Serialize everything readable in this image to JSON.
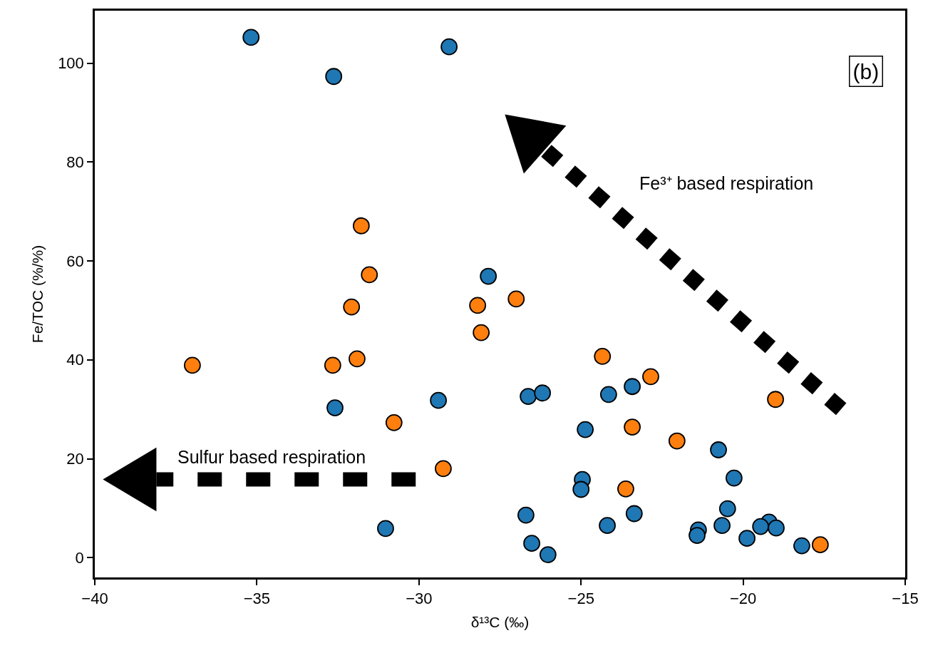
{
  "chart_data": {
    "type": "scatter",
    "xlabel": "δ¹³C (‰)",
    "ylabel": "Fe/TOC (%/%)",
    "xlim": [
      -40,
      -15
    ],
    "xticks": [
      -40,
      -35,
      -30,
      -25,
      -20,
      -15
    ],
    "ylim": [
      -4,
      110.6
    ],
    "yticks": [
      0,
      20,
      40,
      60,
      80,
      100
    ],
    "marker": "circle",
    "series": [
      {
        "color": "#1f77b4",
        "x": [
          -35.18,
          -32.63,
          -29.07,
          -27.86,
          -32.59,
          -29.4,
          -31.03,
          -26.63,
          -26.19,
          -24.15,
          -23.42,
          -24.87,
          -24.96,
          -25.0,
          -20.76,
          -20.28,
          -26.7,
          -24.19,
          -23.36,
          -26.52,
          -26.02,
          -20.48,
          -20.65,
          -21.38,
          -21.42,
          -19.88,
          -19.2,
          -18.98,
          -19.46,
          -18.19
        ],
        "values": [
          105.2,
          97.3,
          103.3,
          56.9,
          30.3,
          31.8,
          5.9,
          32.6,
          33.3,
          33.0,
          34.6,
          25.9,
          15.8,
          13.8,
          21.8,
          16.1,
          8.6,
          6.5,
          8.9,
          2.9,
          0.6,
          9.9,
          6.5,
          5.6,
          4.5,
          3.9,
          7.2,
          6.0,
          6.3,
          2.4
        ]
      },
      {
        "color": "#ff7f0e",
        "x": [
          -36.99,
          -32.66,
          -31.91,
          -32.08,
          -31.53,
          -31.78,
          -30.77,
          -29.25,
          -28.19,
          -28.08,
          -27.0,
          -24.34,
          -22.85,
          -23.42,
          -22.04,
          -23.62,
          -19.0,
          -17.62
        ],
        "values": [
          38.9,
          38.9,
          40.2,
          50.7,
          57.2,
          67.1,
          27.3,
          18.0,
          51.0,
          45.5,
          52.3,
          40.7,
          36.6,
          26.4,
          23.6,
          13.9,
          32.0,
          2.6
        ]
      }
    ],
    "annotations": [
      "(b)",
      "Fe³⁺ based respiration",
      "Sulfur based respiration"
    ]
  }
}
